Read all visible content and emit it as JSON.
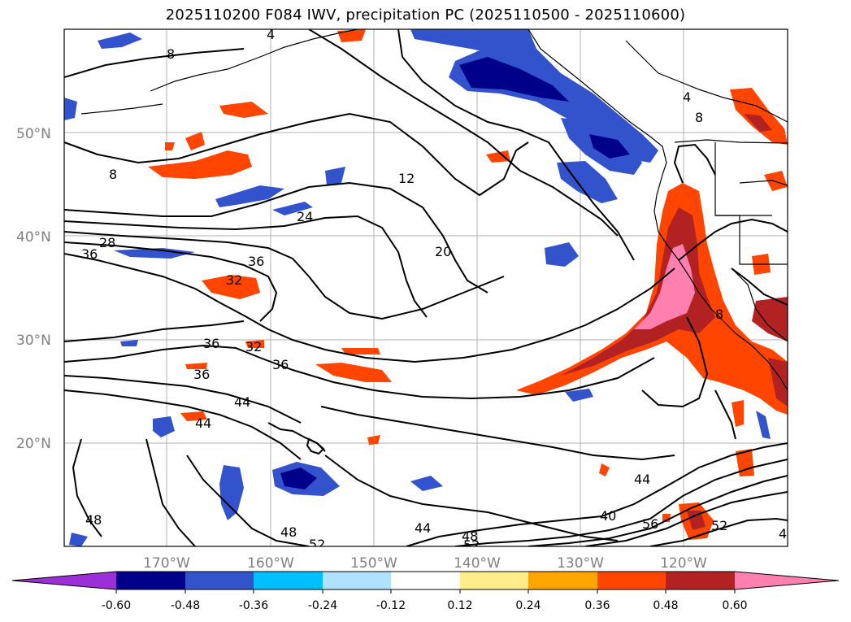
{
  "title": "2025110200 F084 IWV, precipitation PC (2025110500 - 2025110600)",
  "lat_labels": [
    "50°N",
    "40°N",
    "30°N",
    "20°N"
  ],
  "lon_labels": [
    "170°W",
    "160°W",
    "150°W",
    "140°W",
    "130°W",
    "120°W"
  ],
  "contour_labels": [
    "4",
    "8",
    "8",
    "12",
    "20",
    "24",
    "28",
    "36",
    "36",
    "32",
    "36",
    "32",
    "36",
    "36",
    "44",
    "44",
    "48",
    "48",
    "52",
    "44",
    "48",
    "52",
    "40",
    "44",
    "56",
    "52",
    "4",
    "8",
    "4",
    "8"
  ],
  "colorbar": {
    "tick_labels": [
      "-0.60",
      "-0.48",
      "-0.36",
      "-0.24",
      "-0.12",
      "0.12",
      "0.24",
      "0.36",
      "0.48",
      "0.60"
    ],
    "colors": [
      "#9b30d9",
      "#00008b",
      "#3353cc",
      "#00bfff",
      "#b0e2ff",
      "#ffffff",
      "#ffec8b",
      "#ffa500",
      "#ff4500",
      "#b22222",
      "#ff7faf"
    ]
  }
}
